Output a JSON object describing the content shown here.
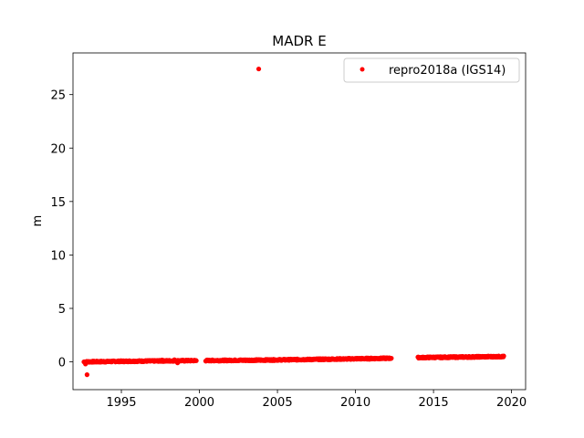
{
  "chart_data": {
    "type": "scatter",
    "title": "MADR E",
    "xlabel": "",
    "ylabel": "m",
    "xlim": [
      1991.9,
      2020.9
    ],
    "ylim": [
      -2.6,
      28.9
    ],
    "xticks": [
      1995,
      2000,
      2005,
      2010,
      2015,
      2020
    ],
    "yticks": [
      0,
      5,
      10,
      15,
      20,
      25
    ],
    "grid": false,
    "legend": "top-right",
    "colors": {
      "series": "#ff0000",
      "axes": "#000000"
    },
    "series": [
      {
        "name": "repro2018a (IGS14)",
        "marker": "point",
        "segments": [
          {
            "x_start": 1992.6,
            "x_end": 1995.0,
            "y_start": 0.0,
            "y_end": 0.05,
            "density": 40
          },
          {
            "x_start": 1995.0,
            "x_end": 1999.8,
            "y_start": 0.05,
            "y_end": 0.12,
            "density": 40
          },
          {
            "x_start": 2000.4,
            "x_end": 2003.8,
            "y_start": 0.12,
            "y_end": 0.16,
            "density": 40
          },
          {
            "x_start": 2003.8,
            "x_end": 2008.8,
            "y_start": 0.16,
            "y_end": 0.26,
            "density": 40
          },
          {
            "x_start": 2008.8,
            "x_end": 2012.3,
            "y_start": 0.26,
            "y_end": 0.34,
            "density": 40
          },
          {
            "x_start": 2014.0,
            "x_end": 2019.5,
            "y_start": 0.4,
            "y_end": 0.5,
            "density": 40
          }
        ],
        "outliers": [
          {
            "x": 2003.8,
            "y": 27.4
          },
          {
            "x": 1992.8,
            "y": -1.2
          },
          {
            "x": 1992.7,
            "y": -0.2
          },
          {
            "x": 1998.6,
            "y": -0.1
          },
          {
            "x": 1998.4,
            "y": 0.2
          },
          {
            "x": 1997.6,
            "y": 0.18
          }
        ]
      }
    ]
  }
}
